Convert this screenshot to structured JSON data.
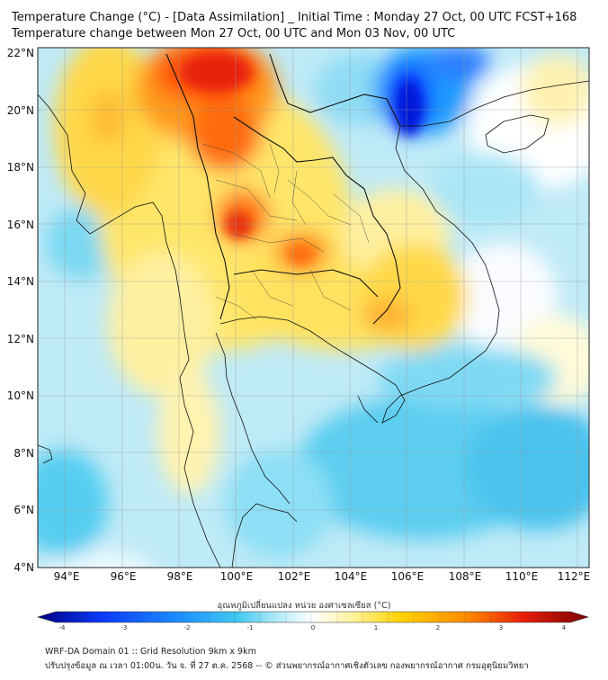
{
  "header": {
    "title_line1": "Temperature Change (°C) - [Data Assimilation] _ Initial Time : Monday 27 Oct, 00 UTC FCST+168",
    "title_line2": "Temperature change between Mon 27 Oct, 00 UTC and Mon 03 Nov, 00 UTC"
  },
  "map": {
    "lat_labels": [
      "22°N",
      "20°N",
      "18°N",
      "16°N",
      "14°N",
      "12°N",
      "10°N",
      "8°N",
      "6°N",
      "4°N"
    ],
    "lon_labels": [
      "94°E",
      "96°E",
      "98°E",
      "100°E",
      "102°E",
      "104°E",
      "106°E",
      "108°E",
      "110°E",
      "112°E"
    ]
  },
  "colorbar": {
    "label": "อุณหภูมิเปลี่ยนแปลง หน่วย องศาเซลเซียส (°C)",
    "ticks": [
      "-4",
      "-3",
      "-2",
      "-1",
      "0",
      "1",
      "2",
      "3",
      "4"
    ],
    "colors": {
      "deep_blue": "#000080",
      "blue": "#0a3cff",
      "cyan": "#3fc8f0",
      "light_cyan": "#b9ecf8",
      "white": "#ffffff",
      "pale_yellow": "#fff3a0",
      "yellow": "#ffd200",
      "orange": "#ff8a00",
      "red": "#e8200a",
      "dark_red": "#7a0000"
    }
  },
  "footer": {
    "line1": "WRF-DA Domain 01 :: Grid Resolution 9km x 9km",
    "line2": "ปรับปรุงข้อมูล ณ เวลา 01:00น. วัน จ. ที่ 27 ต.ค. 2568 -- © ส่วนพยากรณ์อากาศเชิงตัวเลข กองพยากรณ์อากาศ กรมอุตุนิยมวิทยา"
  }
}
